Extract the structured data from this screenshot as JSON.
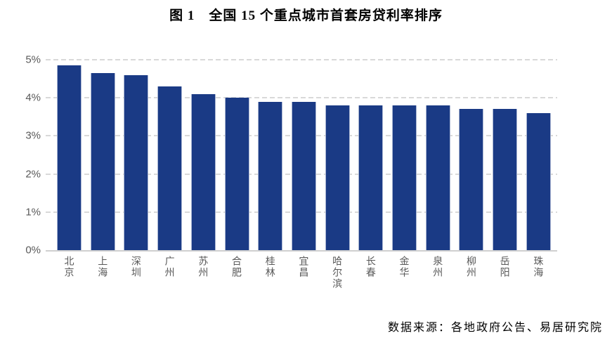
{
  "chart": {
    "title": "图 1　全国 15 个重点城市首套房贷利率排序",
    "source": "数据来源：各地政府公告、易居研究院"
  },
  "chart_data": {
    "type": "bar",
    "title": "图 1　全国 15 个重点城市首套房贷利率排序",
    "categories": [
      "北京",
      "上海",
      "深圳",
      "广州",
      "苏州",
      "合肥",
      "桂林",
      "宜昌",
      "哈尔滨",
      "长春",
      "金华",
      "泉州",
      "柳州",
      "岳阳",
      "珠海"
    ],
    "values": [
      4.85,
      4.65,
      4.6,
      4.3,
      4.1,
      4.0,
      3.9,
      3.9,
      3.8,
      3.8,
      3.8,
      3.8,
      3.7,
      3.7,
      3.6
    ],
    "unit": "%",
    "xlabel": "",
    "ylabel": "",
    "ylim": [
      0,
      5
    ],
    "y_ticks": [
      0,
      1,
      2,
      3,
      4,
      5
    ],
    "y_tick_labels": [
      "0%",
      "1%",
      "2%",
      "3%",
      "4%",
      "5%"
    ],
    "grid": "horizontal-dashed",
    "legend": "none",
    "bar_color": "#1A3A85",
    "bar_edge_color": "#A9B5D2",
    "grid_color": "#D9D9D9",
    "axis_line_color": "#D0D0D0",
    "tick_label_color": "#595959",
    "source": "数据来源：各地政府公告、易居研究院"
  }
}
